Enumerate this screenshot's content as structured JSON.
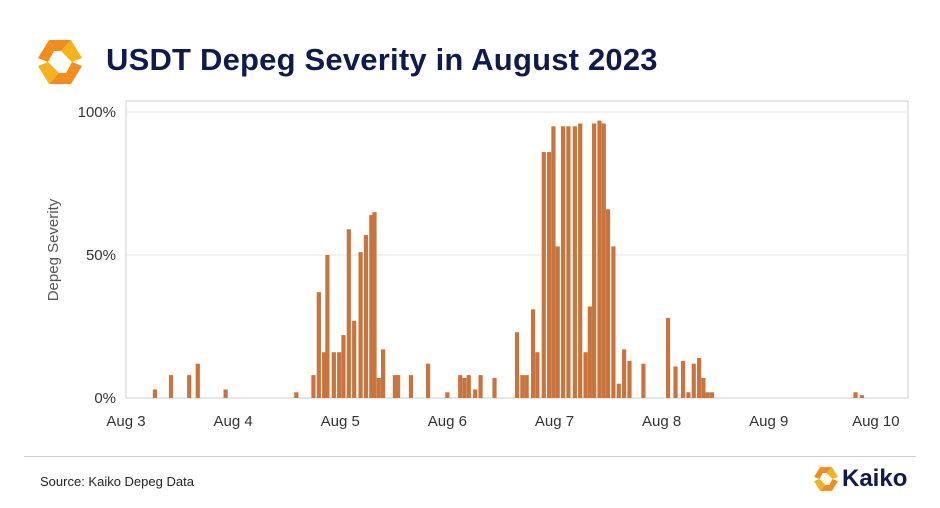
{
  "header": {
    "title": "USDT Depeg Severity in August 2023"
  },
  "footer": {
    "source": "Source: Kaiko Depeg Data",
    "brand": "Kaiko"
  },
  "colors": {
    "bar": "#c8743c",
    "accent_orange": "#f28c1b",
    "accent_yellow": "#f6b21a",
    "title_navy": "#0f1a4f",
    "grid": "#e6e6e6",
    "frame": "#cccccc"
  },
  "icons": {
    "header_logo": "kaiko-logo-icon",
    "footer_logo": "kaiko-logo-icon"
  },
  "chart_data": {
    "type": "bar",
    "title": "USDT Depeg Severity in August 2023",
    "xlabel": "",
    "ylabel": "Depeg Severity",
    "ylim": [
      0,
      100
    ],
    "y_ticks": [
      {
        "value": 0,
        "label": "0%"
      },
      {
        "value": 50,
        "label": "50%"
      },
      {
        "value": 100,
        "label": "100%"
      }
    ],
    "x_range": [
      3.0,
      10.3
    ],
    "x_ticks": [
      {
        "value": 3,
        "label": "Aug 3"
      },
      {
        "value": 4,
        "label": "Aug 4"
      },
      {
        "value": 5,
        "label": "Aug 5"
      },
      {
        "value": 6,
        "label": "Aug 6"
      },
      {
        "value": 7,
        "label": "Aug 7"
      },
      {
        "value": 8,
        "label": "Aug 8"
      },
      {
        "value": 9,
        "label": "Aug 9"
      },
      {
        "value": 10,
        "label": "Aug 10"
      }
    ],
    "grid": true,
    "legend": "none",
    "series": [
      {
        "x": [
          3.27,
          3.42,
          3.59,
          3.67,
          3.93,
          4.59,
          4.75,
          4.8,
          4.85,
          4.88,
          4.94,
          4.99,
          5.03,
          5.08,
          5.13,
          5.19,
          5.24,
          5.29,
          5.32,
          5.36,
          5.4,
          5.51,
          5.54,
          5.66,
          5.82,
          6.0,
          6.12,
          6.16,
          6.2,
          6.26,
          6.31,
          6.44,
          6.65,
          6.7,
          6.74,
          6.8,
          6.84,
          6.9,
          6.95,
          6.99,
          7.03,
          7.08,
          7.13,
          7.19,
          7.24,
          7.29,
          7.33,
          7.37,
          7.42,
          7.46,
          7.5,
          7.55,
          7.6,
          7.65,
          7.7,
          7.83,
          8.06,
          8.13,
          8.2,
          8.25,
          8.3,
          8.35,
          8.39,
          8.43,
          8.47,
          9.81,
          9.87
        ],
        "values": [
          3,
          8,
          8,
          12,
          3,
          2,
          8,
          37,
          16,
          50,
          16,
          16,
          22,
          59,
          27,
          51,
          57,
          64,
          65,
          7,
          17,
          8,
          8,
          8,
          12,
          2,
          8,
          7,
          8,
          3,
          8,
          7,
          23,
          8,
          8,
          31,
          16,
          86,
          86,
          95,
          53,
          95,
          95,
          95,
          96,
          16,
          32,
          96,
          97,
          96,
          66,
          53,
          5,
          17,
          13,
          12,
          28,
          11,
          13,
          2,
          12,
          14,
          7,
          2,
          2,
          2,
          1
        ]
      }
    ]
  }
}
